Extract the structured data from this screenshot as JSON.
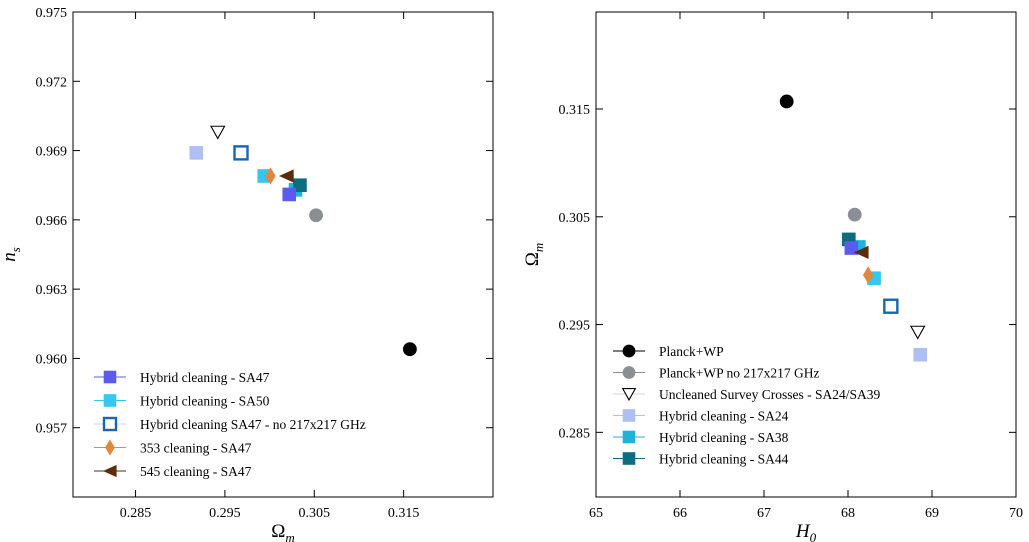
{
  "chart_data": [
    {
      "type": "scatter",
      "xlabel": "Ωm",
      "xlabel_main": "Ω",
      "xlabel_sub": "m",
      "ylabel": "ns",
      "ylabel_main": "n",
      "ylabel_sub": "s",
      "xlim": [
        0.278,
        0.325
      ],
      "ylim": [
        0.954,
        0.975
      ],
      "xticks": [
        0.285,
        0.295,
        0.305,
        0.315
      ],
      "xtick_labels": [
        "0.285",
        "0.295",
        "0.305",
        "0.315"
      ],
      "yticks": [
        0.957,
        0.96,
        0.963,
        0.966,
        0.969,
        0.972,
        0.975
      ],
      "ytick_labels": [
        "0.957",
        "0.960",
        "0.963",
        "0.966",
        "0.969",
        "0.972",
        "0.975"
      ],
      "grid": false,
      "legend_position": "lower-left",
      "series": [
        {
          "name": "Planck+WP",
          "marker": "circle",
          "color": "#000000",
          "filled": true,
          "in_legend": false,
          "points": [
            [
              0.3157,
              0.9604
            ]
          ]
        },
        {
          "name": "Planck+WP no 217x217 GHz",
          "marker": "circle",
          "color": "#8a8f94",
          "filled": true,
          "in_legend": false,
          "points": [
            [
              0.3052,
              0.9662
            ]
          ]
        },
        {
          "name": "Uncleaned Survey Crosses - SA24/SA39",
          "marker": "triangle-down",
          "color": "#000000",
          "filled": false,
          "in_legend": false,
          "points": [
            [
              0.2942,
              0.9698
            ]
          ]
        },
        {
          "name": "Hybrid cleaning - SA24",
          "marker": "square",
          "color": "#aebff5",
          "filled": true,
          "in_legend": false,
          "points": [
            [
              0.2918,
              0.9689
            ]
          ]
        },
        {
          "name": "Hybrid cleaning - SA38",
          "marker": "square",
          "color": "#1cb4d8",
          "filled": true,
          "in_legend": false,
          "points": [
            [
              0.3029,
              0.9673
            ]
          ]
        },
        {
          "name": "Hybrid cleaning - SA44",
          "marker": "square",
          "color": "#0e6c80",
          "filled": true,
          "in_legend": false,
          "points": [
            [
              0.3034,
              0.9675
            ]
          ]
        },
        {
          "name": "Hybrid cleaning - SA47",
          "marker": "square",
          "color": "#5b5bf0",
          "filled": true,
          "in_legend": true,
          "points": [
            [
              0.3022,
              0.9671
            ]
          ]
        },
        {
          "name": "Hybrid cleaning - SA50",
          "marker": "square",
          "color": "#37c6ee",
          "filled": true,
          "in_legend": true,
          "points": [
            [
              0.2994,
              0.9679
            ]
          ]
        },
        {
          "name": "Hybrid cleaning SA47 - no 217x217 GHz",
          "marker": "square",
          "color": "#1a64b6",
          "filled": false,
          "in_legend": true,
          "points": [
            [
              0.2968,
              0.9689
            ]
          ]
        },
        {
          "name": "353 cleaning - SA47",
          "marker": "diamond",
          "color": "#e3883b",
          "filled": true,
          "in_legend": true,
          "points": [
            [
              0.3001,
              0.9679
            ]
          ]
        },
        {
          "name": "545 cleaning - SA47",
          "marker": "triangle-left",
          "color": "#5a2d0c",
          "filled": true,
          "in_legend": true,
          "points": [
            [
              0.3019,
              0.9679
            ]
          ]
        }
      ],
      "legend": [
        "Hybrid cleaning - SA47",
        "Hybrid cleaning - SA50",
        "Hybrid cleaning SA47 - no 217x217 GHz",
        "353 cleaning - SA47",
        "545 cleaning - SA47"
      ]
    },
    {
      "type": "scatter",
      "xlabel": "H0",
      "xlabel_main": "H",
      "xlabel_sub": "0",
      "ylabel": "Ωm",
      "ylabel_main": "Ω",
      "ylabel_sub": "m",
      "xlim": [
        65,
        70
      ],
      "ylim": [
        0.279,
        0.324
      ],
      "xticks": [
        65,
        66,
        67,
        68,
        69,
        70
      ],
      "xtick_labels": [
        "65",
        "66",
        "67",
        "68",
        "69",
        "70"
      ],
      "yticks": [
        0.285,
        0.295,
        0.305,
        0.315
      ],
      "ytick_labels": [
        "0.285",
        "0.295",
        "0.305",
        "0.315"
      ],
      "grid": false,
      "legend_position": "lower-left",
      "series": [
        {
          "name": "Planck+WP",
          "marker": "circle",
          "color": "#000000",
          "filled": true,
          "in_legend": true,
          "points": [
            [
              67.27,
              0.3157
            ]
          ]
        },
        {
          "name": "Planck+WP no 217x217 GHz",
          "marker": "circle",
          "color": "#8a8f94",
          "filled": true,
          "in_legend": true,
          "points": [
            [
              68.08,
              0.3052
            ]
          ]
        },
        {
          "name": "Uncleaned Survey Crosses - SA24/SA39",
          "marker": "triangle-down",
          "color": "#000000",
          "filled": false,
          "in_legend": true,
          "points": [
            [
              68.83,
              0.2943
            ]
          ]
        },
        {
          "name": "Hybrid cleaning - SA24",
          "marker": "square",
          "color": "#aebff5",
          "filled": true,
          "in_legend": true,
          "points": [
            [
              68.86,
              0.2922
            ]
          ]
        },
        {
          "name": "Hybrid cleaning - SA38",
          "marker": "square",
          "color": "#1cb4d8",
          "filled": true,
          "in_legend": true,
          "points": [
            [
              68.13,
              0.3022
            ]
          ]
        },
        {
          "name": "Hybrid cleaning - SA44",
          "marker": "square",
          "color": "#0e6c80",
          "filled": true,
          "in_legend": true,
          "points": [
            [
              68.01,
              0.3029
            ]
          ]
        },
        {
          "name": "Hybrid cleaning - SA47",
          "marker": "square",
          "color": "#5b5bf0",
          "filled": true,
          "in_legend": false,
          "points": [
            [
              68.04,
              0.3021
            ]
          ]
        },
        {
          "name": "Hybrid cleaning - SA50",
          "marker": "square",
          "color": "#37c6ee",
          "filled": true,
          "in_legend": false,
          "points": [
            [
              68.31,
              0.2993
            ]
          ]
        },
        {
          "name": "Hybrid cleaning SA47 - no 217x217 GHz",
          "marker": "square",
          "color": "#1a64b6",
          "filled": false,
          "in_legend": false,
          "points": [
            [
              68.51,
              0.2967
            ]
          ]
        },
        {
          "name": "353 cleaning - SA47",
          "marker": "diamond",
          "color": "#e3883b",
          "filled": true,
          "in_legend": false,
          "points": [
            [
              68.24,
              0.2996
            ]
          ]
        },
        {
          "name": "545 cleaning - SA47",
          "marker": "triangle-left",
          "color": "#5a2d0c",
          "filled": true,
          "in_legend": false,
          "points": [
            [
              68.16,
              0.3017
            ]
          ]
        }
      ],
      "legend": [
        "Planck+WP",
        "Planck+WP no 217x217 GHz",
        "Uncleaned Survey Crosses - SA24/SA39",
        "Hybrid cleaning - SA24",
        "Hybrid cleaning - SA38",
        "Hybrid cleaning - SA44"
      ]
    }
  ]
}
